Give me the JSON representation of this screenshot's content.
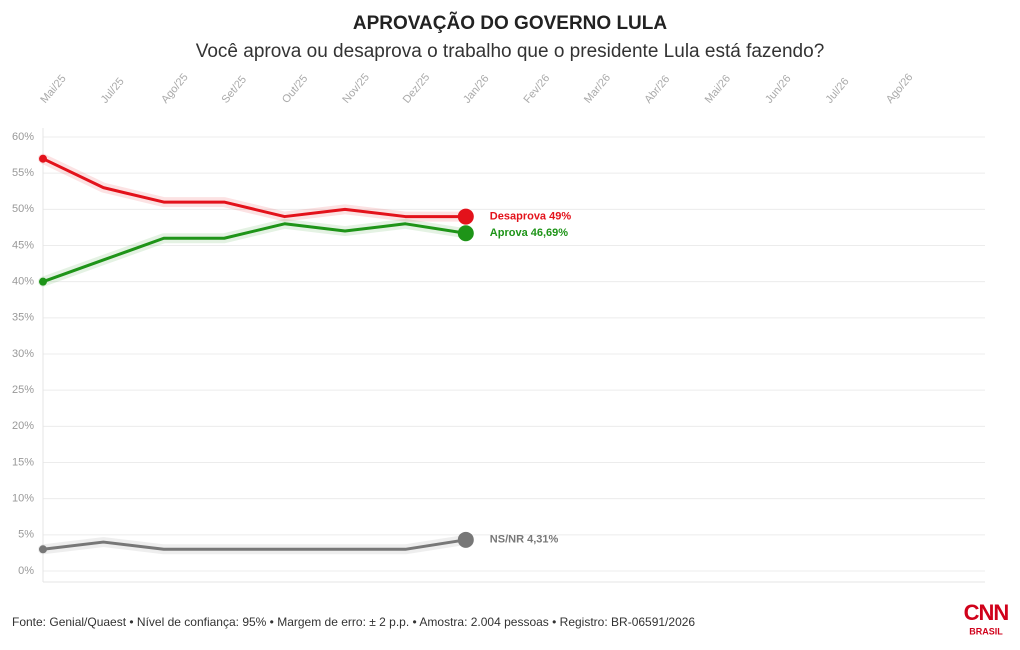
{
  "chart_data": {
    "type": "line",
    "title": "APROVAÇÃO DO GOVERNO LULA",
    "subtitle": "Você aprova ou desaprova o trabalho que o presidente Lula está fazendo?",
    "categories": [
      "Mai/25",
      "Jul/25",
      "Ago/25",
      "Set/25",
      "Out/25",
      "Nov/25",
      "Dez/25",
      "Jan/26",
      "Fev/26",
      "Mar/26",
      "Abr/26",
      "Mai/26",
      "Jun/26",
      "Jul/26",
      "Ago/26"
    ],
    "series": [
      {
        "name": "Desaprova",
        "color": "#e3121b",
        "values": [
          57,
          53,
          51,
          51,
          49,
          50,
          49,
          49,
          null,
          null,
          null,
          null,
          null,
          null,
          null
        ],
        "value_labels": [
          null,
          null,
          null,
          null,
          null,
          null,
          null,
          "Desaprova 49%",
          null,
          null,
          null,
          null,
          null,
          null,
          null
        ]
      },
      {
        "name": "Aprova",
        "color": "#1e9418",
        "values": [
          40,
          43,
          46,
          46,
          48,
          47,
          48,
          46.69,
          null,
          null,
          null,
          null,
          null,
          null,
          null
        ],
        "value_labels": [
          null,
          null,
          null,
          null,
          null,
          null,
          null,
          "Aprova 46,69%",
          null,
          null,
          null,
          null,
          null,
          null,
          null
        ]
      },
      {
        "name": "NS/NR",
        "color": "#777777",
        "values": [
          3,
          4,
          3,
          3,
          3,
          3,
          3,
          4.31,
          null,
          null,
          null,
          null,
          null,
          null,
          null
        ],
        "value_labels": [
          null,
          null,
          null,
          null,
          null,
          null,
          null,
          "NS/NR 4,31%",
          null,
          null,
          null,
          null,
          null,
          null,
          null
        ]
      }
    ],
    "ylim": [
      0,
      60
    ],
    "yticks": [
      {
        "value": 0,
        "label": "0%"
      },
      {
        "value": 5,
        "label": "5%"
      },
      {
        "value": 10,
        "label": "10%"
      },
      {
        "value": 15,
        "label": "15%"
      },
      {
        "value": 20,
        "label": "20%"
      },
      {
        "value": 25,
        "label": "25%"
      },
      {
        "value": 30,
        "label": "30%"
      },
      {
        "value": 35,
        "label": "35%"
      },
      {
        "value": 40,
        "label": "40%"
      },
      {
        "value": 45,
        "label": "45%"
      },
      {
        "value": 50,
        "label": "50%"
      },
      {
        "value": 55,
        "label": "55%"
      },
      {
        "value": 60,
        "label": "60%"
      }
    ],
    "grid": true,
    "source": "Fonte: Genial/Quaest • Nível de confiança: 95% • Margem de erro: ± 2 p.p. • Amostra: 2.004 pessoas • Registro: BR-06591/2026",
    "logo": {
      "text": "CNN",
      "subtext": "BRASIL"
    }
  }
}
